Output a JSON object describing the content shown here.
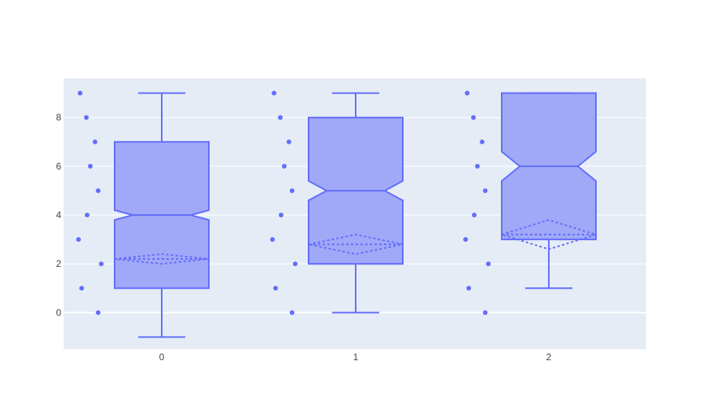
{
  "chart_data": {
    "type": "box",
    "title": "",
    "xlabel": "",
    "ylabel": "",
    "categories": [
      "0",
      "1",
      "2"
    ],
    "ylim": [
      -1.5,
      9.6
    ],
    "yticks": [
      0,
      2,
      4,
      6,
      8
    ],
    "grid": true,
    "legend": "none",
    "notched": true,
    "show_mean_sd": true,
    "show_points": "all",
    "boxes": [
      {
        "category": "0",
        "lowerfence": -1,
        "q1": 1,
        "median": 4,
        "q3": 7,
        "upperfence": 9,
        "notch_low": 3.8,
        "notch_high": 4.2,
        "mean": 2.2,
        "sd_low": 2.0,
        "sd_high": 2.4,
        "points": [
          9,
          8,
          7,
          6,
          5,
          4,
          3,
          2,
          1,
          0
        ]
      },
      {
        "category": "1",
        "lowerfence": 0,
        "q1": 2,
        "median": 5,
        "q3": 8,
        "upperfence": 9,
        "notch_low": 4.6,
        "notch_high": 5.4,
        "mean": 2.8,
        "sd_low": 2.4,
        "sd_high": 3.2,
        "points": [
          9,
          8,
          7,
          6,
          5,
          4,
          3,
          2,
          1,
          0
        ]
      },
      {
        "category": "2",
        "lowerfence": 1,
        "q1": 3,
        "median": 6,
        "q3": 9,
        "upperfence": 9,
        "notch_low": 5.4,
        "notch_high": 6.6,
        "mean": 3.2,
        "sd_low": 2.6,
        "sd_high": 3.8,
        "points": [
          9,
          8,
          7,
          6,
          5,
          4,
          3,
          2,
          1,
          0
        ]
      }
    ],
    "colors": {
      "plot_bg": "#e5ecf6",
      "grid": "#ffffff",
      "line": "#636efa",
      "fill": "#a0a8f8",
      "tick_text": "#444444"
    }
  }
}
